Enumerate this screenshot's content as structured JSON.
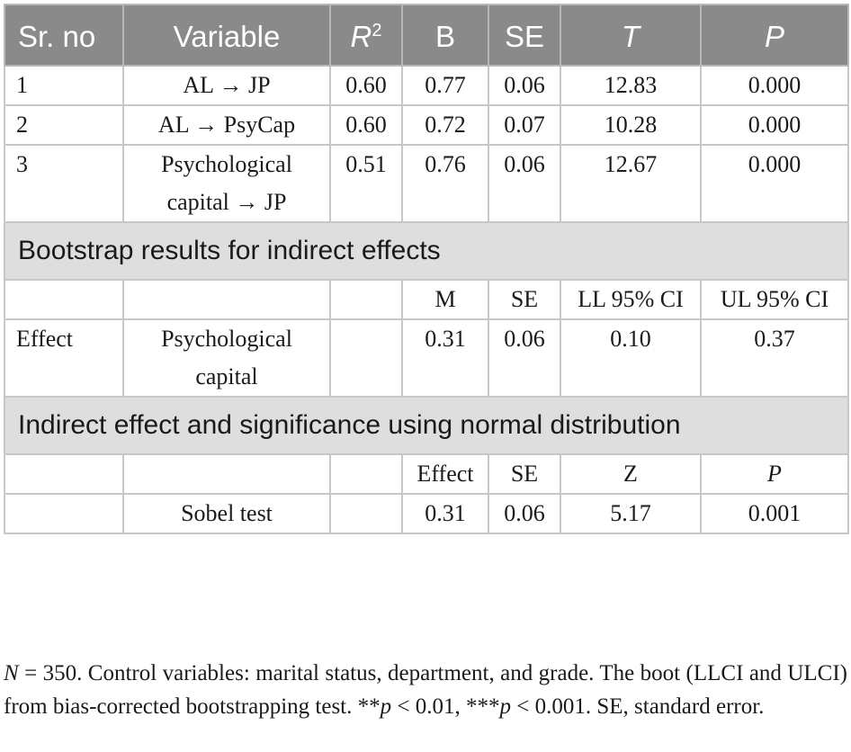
{
  "header": {
    "sr_no": "Sr. no",
    "variable": "Variable",
    "r2_base": "R",
    "r2_sup": "2",
    "b": "B",
    "se": "SE",
    "t": "T",
    "p": "P"
  },
  "rows": [
    {
      "sr": "1",
      "variable": "AL → JP",
      "r2": "0.60",
      "b": "0.77",
      "se": "0.06",
      "t": "12.83",
      "p": "0.000"
    },
    {
      "sr": "2",
      "variable": "AL → PsyCap",
      "r2": "0.60",
      "b": "0.72",
      "se": "0.07",
      "t": "10.28",
      "p": "0.000"
    },
    {
      "sr": "3",
      "variable_line1": "Psychological",
      "variable_line2": "capital → JP",
      "r2": "0.51",
      "b": "0.76",
      "se": "0.06",
      "t": "12.67",
      "p": "0.000"
    }
  ],
  "bootstrap": {
    "title": "Bootstrap results for indirect effects",
    "header": {
      "m": "M",
      "se": "SE",
      "ll": "LL 95% CI",
      "ul": "UL 95% CI"
    },
    "row": {
      "label": "Effect",
      "variable_line1": "Psychological",
      "variable_line2": "capital",
      "m": "0.31",
      "se": "0.06",
      "ll": "0.10",
      "ul": "0.37"
    }
  },
  "normal": {
    "title": "Indirect effect and significance using normal distribution",
    "header": {
      "effect": "Effect",
      "se": "SE",
      "z": "Z",
      "p": "P"
    },
    "row": {
      "label": "Sobel test",
      "effect": "0.31",
      "se": "0.06",
      "z": "5.17",
      "p": "0.001"
    }
  },
  "note": {
    "n_label": "N",
    "n_text": " = 350. Control variables: marital status, department, and grade. The boot (LLCI and ULCI) from bias-corrected bootstrapping test. **",
    "p1": "p",
    "mid": " < 0.01, ***",
    "p2": "p",
    "tail": " < 0.001. SE, standard error."
  }
}
